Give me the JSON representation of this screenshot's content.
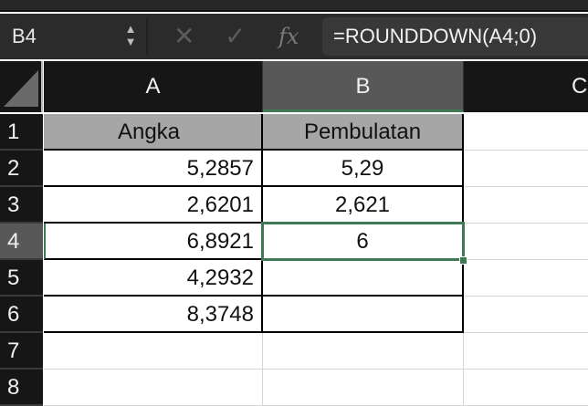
{
  "formula_bar": {
    "name_box": "B4",
    "cancel_icon": "x-icon",
    "confirm_icon": "check-icon",
    "fx_label": "fx",
    "formula": "=ROUNDDOWN(A4;0)"
  },
  "columns": [
    "A",
    "B",
    "C"
  ],
  "rows": [
    "1",
    "2",
    "3",
    "4",
    "5",
    "6",
    "7",
    "8"
  ],
  "cells": {
    "A": [
      "Angka",
      "5,2857",
      "2,6201",
      "6,8921",
      "4,2932",
      "8,3748",
      "",
      ""
    ],
    "B": [
      "Pembulatan",
      "5,29",
      "2,621",
      "6",
      "",
      "",
      "",
      ""
    ]
  },
  "selected_cell": "B4",
  "colors": {
    "selection": "#3f7a55",
    "header_fill": "#a6a6a6"
  }
}
